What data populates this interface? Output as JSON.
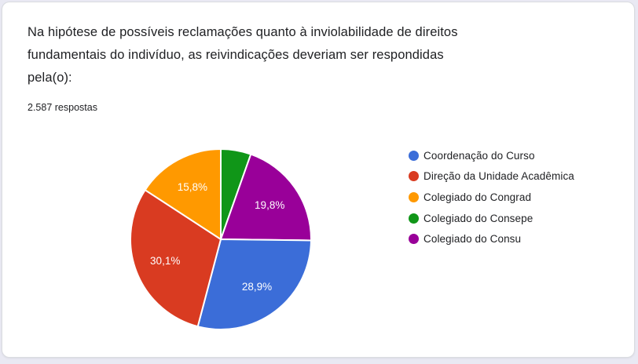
{
  "theme": {
    "page_bg": "#e9e9f3",
    "card_bg": "#ffffff",
    "card_border": "#dadce0",
    "text_color": "#202124"
  },
  "card": {
    "title_lines": [
      "Na hipótese de possíveis reclamações quanto à inviolabilidade de direitos",
      "fundamentais do indivíduo, as reivindicações deveriam ser respondidas",
      "pela(o):"
    ],
    "responses_count": "2.587 respostas"
  },
  "chart_data": {
    "type": "pie",
    "title": "Na hipótese de possíveis reclamações quanto à inviolabilidade de direitos fundamentais do indivíduo, as reivindicações deveriam ser respondidas pela(o):",
    "subtitle": "2.587 respostas",
    "categories": [
      "Coordenação do Curso",
      "Direção da Unidade Acadêmica",
      "Colegiado do Congrad",
      "Colegiado do Consepe",
      "Colegiado do Consu"
    ],
    "values": [
      28.9,
      30.1,
      15.8,
      5.4,
      19.8
    ],
    "slice_labels": [
      "28,9%",
      "30,1%",
      "15,8%",
      "",
      "19,8%"
    ],
    "colors": [
      "#3b6dd8",
      "#d93b21",
      "#ff9900",
      "#109618",
      "#990099"
    ],
    "label_color": "#ffffff",
    "legend_position": "right",
    "start_angle_deg": 0,
    "direction": "clockwise",
    "slice_draw_order": [
      3,
      4,
      0,
      1,
      2
    ]
  }
}
